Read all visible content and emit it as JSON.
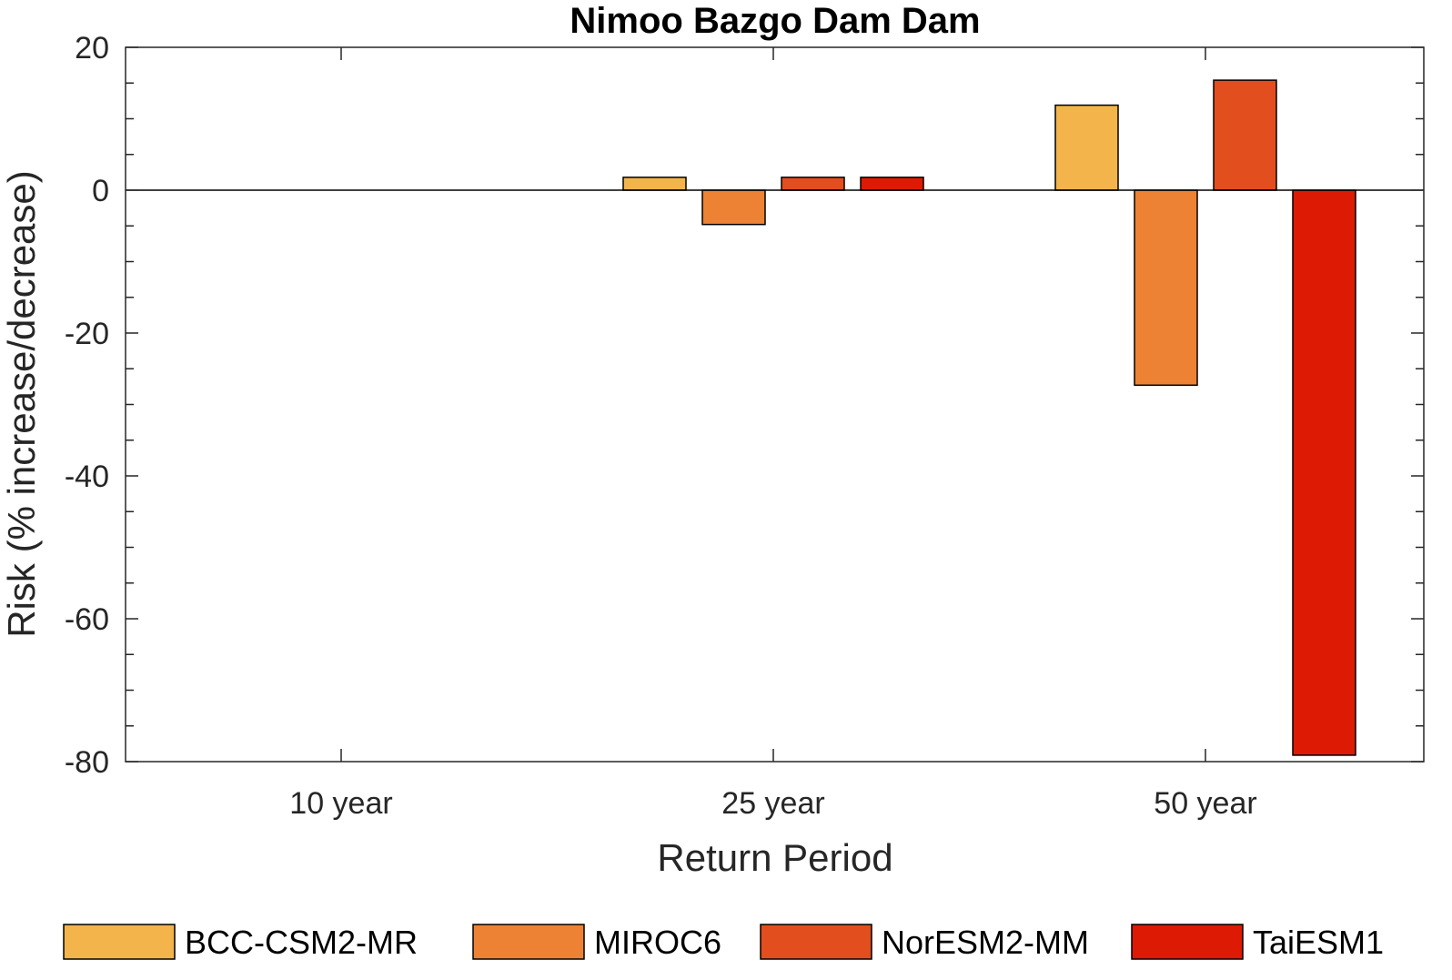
{
  "chart_data": {
    "type": "bar",
    "title": "Nimoo Bazgo Dam Dam",
    "xlabel": "Return Period",
    "ylabel": "Risk (% increase/decrease)",
    "categories": [
      "10 year",
      "25 year",
      "50 year"
    ],
    "ylim": [
      -80,
      20
    ],
    "yticks": [
      20,
      0,
      -20,
      -40,
      -60,
      -80
    ],
    "grid": false,
    "legend_position": "bottom",
    "series": [
      {
        "name": "BCC-CSM2-MR",
        "color": "#F2B44B",
        "values": [
          0,
          1.8,
          11.9
        ]
      },
      {
        "name": "MIROC6",
        "color": "#EE8234",
        "values": [
          0,
          -4.8,
          -27.3
        ]
      },
      {
        "name": "NorESM2-MM",
        "color": "#E24E1E",
        "values": [
          0,
          1.8,
          15.4
        ]
      },
      {
        "name": "TaiESM1",
        "color": "#DD1B04",
        "values": [
          0,
          1.8,
          -79.1
        ]
      }
    ]
  }
}
